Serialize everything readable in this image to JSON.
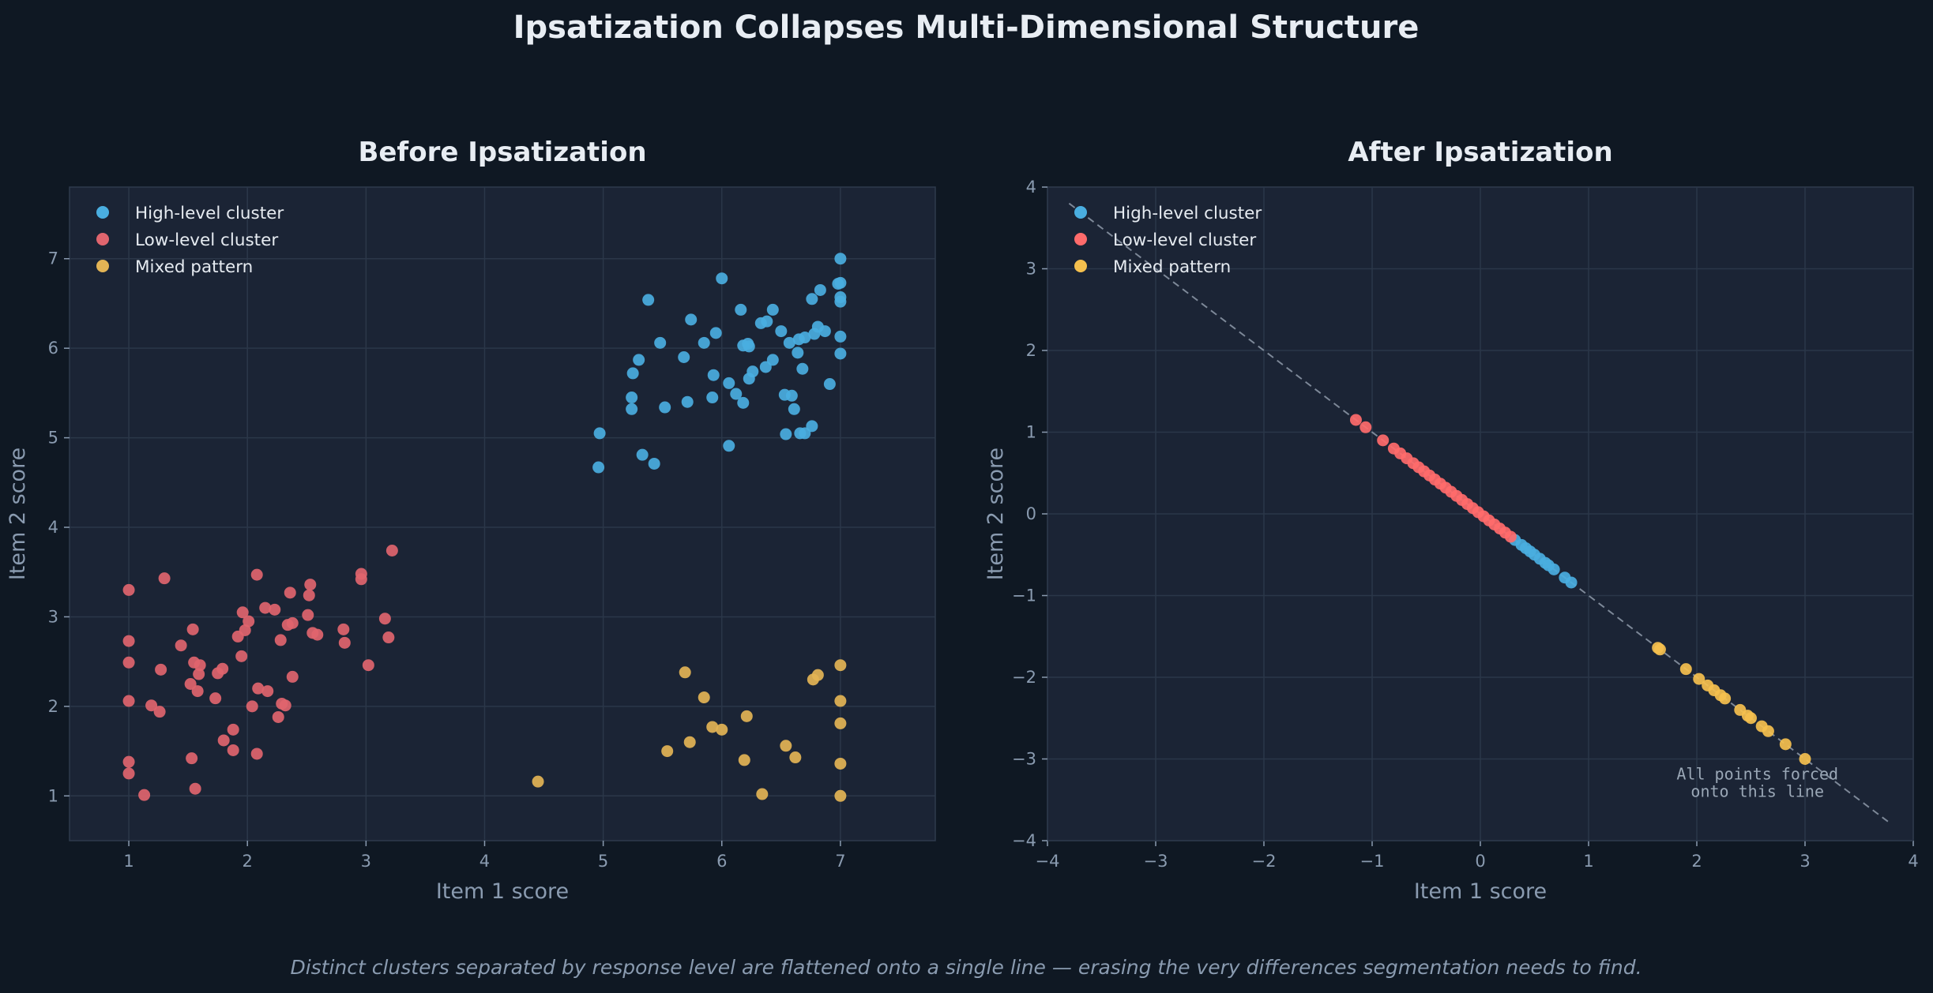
{
  "suptitle": "Ipsatization Collapses Multi-Dimensional Structure",
  "caption": "Distinct clusters separated by response level are flattened onto a single line — erasing the very differences segmentation needs to find.",
  "colors": {
    "high": "#4aaee0",
    "low": "#e0656e",
    "mixed": "#e3b455"
  },
  "chart_data": [
    {
      "type": "scatter",
      "title": "Before Ipsatization",
      "xlabel": "Item 1 score",
      "ylabel": "Item 2 score",
      "xlim": [
        0.5,
        7.8
      ],
      "ylim": [
        0.5,
        7.8
      ],
      "xticks": [
        1,
        2,
        3,
        4,
        5,
        6,
        7
      ],
      "yticks": [
        1,
        2,
        3,
        4,
        5,
        6,
        7
      ],
      "legend": "upper-left",
      "series": [
        {
          "name": "High-level cluster",
          "color": "#4aaee0",
          "points": [
            [
              5.38,
              6.54
            ],
            [
              6.0,
              6.78
            ],
            [
              7.0,
              7.0
            ],
            [
              6.98,
              6.72
            ],
            [
              7.0,
              6.73
            ],
            [
              7.0,
              6.57
            ],
            [
              7.0,
              6.52
            ],
            [
              6.83,
              6.65
            ],
            [
              6.76,
              6.55
            ],
            [
              6.16,
              6.43
            ],
            [
              6.43,
              6.43
            ],
            [
              5.74,
              6.32
            ],
            [
              6.33,
              6.28
            ],
            [
              6.38,
              6.3
            ],
            [
              6.81,
              6.24
            ],
            [
              6.87,
              6.19
            ],
            [
              6.5,
              6.19
            ],
            [
              5.95,
              6.17
            ],
            [
              6.78,
              6.16
            ],
            [
              6.7,
              6.12
            ],
            [
              6.65,
              6.1
            ],
            [
              7.0,
              6.13
            ],
            [
              5.48,
              6.06
            ],
            [
              5.85,
              6.06
            ],
            [
              6.22,
              6.05
            ],
            [
              6.18,
              6.03
            ],
            [
              6.23,
              6.02
            ],
            [
              6.57,
              6.06
            ],
            [
              6.64,
              5.95
            ],
            [
              7.0,
              5.94
            ],
            [
              5.3,
              5.87
            ],
            [
              5.68,
              5.9
            ],
            [
              6.43,
              5.87
            ],
            [
              6.26,
              5.74
            ],
            [
              6.37,
              5.79
            ],
            [
              6.68,
              5.77
            ],
            [
              5.25,
              5.72
            ],
            [
              5.93,
              5.7
            ],
            [
              6.23,
              5.66
            ],
            [
              6.06,
              5.61
            ],
            [
              6.91,
              5.6
            ],
            [
              6.12,
              5.49
            ],
            [
              5.24,
              5.45
            ],
            [
              5.92,
              5.45
            ],
            [
              6.53,
              5.48
            ],
            [
              6.59,
              5.47
            ],
            [
              5.71,
              5.4
            ],
            [
              6.18,
              5.39
            ],
            [
              5.52,
              5.34
            ],
            [
              5.24,
              5.32
            ],
            [
              6.61,
              5.32
            ],
            [
              6.76,
              5.13
            ],
            [
              6.54,
              5.04
            ],
            [
              6.66,
              5.05
            ],
            [
              6.7,
              5.05
            ],
            [
              4.97,
              5.05
            ],
            [
              6.06,
              4.91
            ],
            [
              5.33,
              4.81
            ],
            [
              5.43,
              4.71
            ],
            [
              4.96,
              4.67
            ]
          ]
        },
        {
          "name": "Low-level cluster",
          "color": "#e0656e",
          "points": [
            [
              3.22,
              3.74
            ],
            [
              2.08,
              3.47
            ],
            [
              2.96,
              3.48
            ],
            [
              2.96,
              3.42
            ],
            [
              1.3,
              3.43
            ],
            [
              2.53,
              3.36
            ],
            [
              1.0,
              3.3
            ],
            [
              2.36,
              3.27
            ],
            [
              2.52,
              3.24
            ],
            [
              2.15,
              3.1
            ],
            [
              2.23,
              3.08
            ],
            [
              1.96,
              3.05
            ],
            [
              2.51,
              3.02
            ],
            [
              3.16,
              2.98
            ],
            [
              2.01,
              2.95
            ],
            [
              2.38,
              2.93
            ],
            [
              2.34,
              2.91
            ],
            [
              1.98,
              2.85
            ],
            [
              2.81,
              2.86
            ],
            [
              1.54,
              2.86
            ],
            [
              2.55,
              2.82
            ],
            [
              2.59,
              2.8
            ],
            [
              1.92,
              2.78
            ],
            [
              3.19,
              2.77
            ],
            [
              1.0,
              2.73
            ],
            [
              2.28,
              2.74
            ],
            [
              2.82,
              2.71
            ],
            [
              1.44,
              2.68
            ],
            [
              1.95,
              2.56
            ],
            [
              1.0,
              2.49
            ],
            [
              1.55,
              2.49
            ],
            [
              1.6,
              2.46
            ],
            [
              3.02,
              2.46
            ],
            [
              1.79,
              2.42
            ],
            [
              1.27,
              2.41
            ],
            [
              1.75,
              2.37
            ],
            [
              1.59,
              2.36
            ],
            [
              2.38,
              2.33
            ],
            [
              1.52,
              2.25
            ],
            [
              2.09,
              2.2
            ],
            [
              2.17,
              2.17
            ],
            [
              1.58,
              2.17
            ],
            [
              1.73,
              2.09
            ],
            [
              1.0,
              2.06
            ],
            [
              2.29,
              2.03
            ],
            [
              2.32,
              2.01
            ],
            [
              1.19,
              2.01
            ],
            [
              2.04,
              2.0
            ],
            [
              1.26,
              1.94
            ],
            [
              2.26,
              1.88
            ],
            [
              1.88,
              1.74
            ],
            [
              1.8,
              1.62
            ],
            [
              1.88,
              1.51
            ],
            [
              2.08,
              1.47
            ],
            [
              1.53,
              1.42
            ],
            [
              1.0,
              1.38
            ],
            [
              1.0,
              1.25
            ],
            [
              1.56,
              1.08
            ],
            [
              1.13,
              1.01
            ]
          ]
        },
        {
          "name": "Mixed pattern",
          "color": "#e3b455",
          "points": [
            [
              7.0,
              2.46
            ],
            [
              5.69,
              2.38
            ],
            [
              6.81,
              2.35
            ],
            [
              6.77,
              2.3
            ],
            [
              5.85,
              2.1
            ],
            [
              7.0,
              2.06
            ],
            [
              6.21,
              1.89
            ],
            [
              7.0,
              1.81
            ],
            [
              5.92,
              1.77
            ],
            [
              6.0,
              1.74
            ],
            [
              5.73,
              1.6
            ],
            [
              6.54,
              1.56
            ],
            [
              5.54,
              1.5
            ],
            [
              6.62,
              1.43
            ],
            [
              6.19,
              1.4
            ],
            [
              7.0,
              1.36
            ],
            [
              4.45,
              1.16
            ],
            [
              6.34,
              1.02
            ],
            [
              7.0,
              1.0
            ]
          ]
        }
      ]
    },
    {
      "type": "scatter",
      "title": "After Ipsatization",
      "xlabel": "Item 1 score",
      "ylabel": "Item 2 score",
      "xlim": [
        -4,
        4
      ],
      "ylim": [
        -4,
        4
      ],
      "xticks": [
        -4,
        -3,
        -2,
        -1,
        0,
        1,
        2,
        3,
        4
      ],
      "yticks": [
        -4,
        -3,
        -2,
        -1,
        0,
        1,
        2,
        3,
        4
      ],
      "xtick_labels": [
        "−4",
        "−3",
        "−2",
        "−1",
        "0",
        "1",
        "2",
        "3",
        "4"
      ],
      "ytick_labels": [
        "−4",
        "−3",
        "−2",
        "−1",
        "0",
        "1",
        "2",
        "3",
        "4"
      ],
      "legend": "upper-left",
      "reference_line": {
        "x": [
          -3.8,
          3.8
        ],
        "y": [
          3.8,
          -3.8
        ]
      },
      "annotation": {
        "lines": [
          "All points forced",
          "onto this line"
        ],
        "x": 2.56,
        "y": -3.25
      },
      "series": [
        {
          "name": "High-level cluster",
          "color": "#4aaee0",
          "points": [
            [
              0.32,
              -0.32
            ],
            [
              0.38,
              -0.38
            ],
            [
              0.42,
              -0.42
            ],
            [
              0.46,
              -0.46
            ],
            [
              0.55,
              -0.55
            ],
            [
              0.6,
              -0.6
            ],
            [
              0.68,
              -0.68
            ],
            [
              0.78,
              -0.78
            ],
            [
              0.84,
              -0.84
            ],
            [
              0.5,
              -0.5
            ],
            [
              0.63,
              -0.63
            ]
          ]
        },
        {
          "name": "Low-level cluster",
          "color": "#ff6b6b",
          "points": [
            [
              -1.15,
              1.15
            ],
            [
              -1.06,
              1.06
            ],
            [
              -0.9,
              0.9
            ],
            [
              -0.8,
              0.8
            ],
            [
              -0.74,
              0.74
            ],
            [
              -0.68,
              0.68
            ],
            [
              -0.62,
              0.62
            ],
            [
              -0.57,
              0.57
            ],
            [
              -0.52,
              0.52
            ],
            [
              -0.47,
              0.47
            ],
            [
              -0.42,
              0.42
            ],
            [
              -0.37,
              0.37
            ],
            [
              -0.32,
              0.32
            ],
            [
              -0.27,
              0.27
            ],
            [
              -0.22,
              0.22
            ],
            [
              -0.17,
              0.17
            ],
            [
              -0.12,
              0.12
            ],
            [
              -0.07,
              0.07
            ],
            [
              -0.02,
              0.02
            ],
            [
              0.03,
              -0.03
            ],
            [
              0.08,
              -0.08
            ],
            [
              0.13,
              -0.13
            ],
            [
              0.18,
              -0.18
            ],
            [
              0.23,
              -0.23
            ],
            [
              0.28,
              -0.28
            ]
          ]
        },
        {
          "name": "Mixed pattern",
          "color": "#f5c04e",
          "points": [
            [
              1.64,
              -1.64
            ],
            [
              1.66,
              -1.66
            ],
            [
              1.9,
              -1.9
            ],
            [
              2.02,
              -2.02
            ],
            [
              2.1,
              -2.1
            ],
            [
              2.16,
              -2.16
            ],
            [
              2.22,
              -2.22
            ],
            [
              2.26,
              -2.26
            ],
            [
              2.4,
              -2.4
            ],
            [
              2.47,
              -2.47
            ],
            [
              2.5,
              -2.5
            ],
            [
              2.6,
              -2.6
            ],
            [
              2.66,
              -2.66
            ],
            [
              2.82,
              -2.82
            ],
            [
              3.0,
              -3.0
            ]
          ]
        }
      ]
    }
  ]
}
